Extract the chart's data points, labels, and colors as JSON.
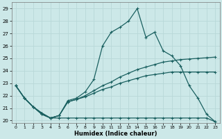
{
  "xlabel": "Humidex (Indice chaleur)",
  "bg_color": "#cce8e8",
  "grid_color": "#b8d8d8",
  "line_color": "#1a6060",
  "xlim": [
    -0.5,
    23.5
  ],
  "ylim": [
    19.8,
    29.5
  ],
  "xticks": [
    0,
    1,
    2,
    3,
    4,
    5,
    6,
    7,
    8,
    9,
    10,
    11,
    12,
    13,
    14,
    15,
    16,
    17,
    18,
    19,
    20,
    21,
    22,
    23
  ],
  "yticks": [
    20,
    21,
    22,
    23,
    24,
    25,
    26,
    27,
    28,
    29
  ],
  "line1_x": [
    0,
    1,
    2,
    3,
    4,
    5,
    6,
    7,
    8,
    9,
    10,
    11,
    12,
    13,
    14,
    15,
    16,
    17,
    18,
    19,
    20,
    21,
    22,
    23
  ],
  "line1_y": [
    22.8,
    21.8,
    21.1,
    20.5,
    20.2,
    20.4,
    21.6,
    21.8,
    22.3,
    23.3,
    26.0,
    27.1,
    27.5,
    28.0,
    29.0,
    26.7,
    27.1,
    25.6,
    25.2,
    24.4,
    22.8,
    21.8,
    20.5,
    19.9
  ],
  "line2_x": [
    0,
    1,
    2,
    3,
    4,
    5,
    6,
    7,
    8,
    9,
    10,
    11,
    12,
    13,
    14,
    15,
    16,
    17,
    18,
    19,
    20,
    21,
    22,
    23
  ],
  "line2_y": [
    22.8,
    21.8,
    21.1,
    20.6,
    20.2,
    20.4,
    21.5,
    21.7,
    22.0,
    22.4,
    22.8,
    23.1,
    23.5,
    23.8,
    24.1,
    24.3,
    24.5,
    24.7,
    24.8,
    24.9,
    24.95,
    25.0,
    25.05,
    25.1
  ],
  "line3_x": [
    0,
    1,
    2,
    3,
    4,
    5,
    6,
    7,
    8,
    9,
    10,
    11,
    12,
    13,
    14,
    15,
    16,
    17,
    18,
    19,
    20,
    21,
    22,
    23
  ],
  "line3_y": [
    22.8,
    21.8,
    21.1,
    20.6,
    20.2,
    20.4,
    21.5,
    21.7,
    21.9,
    22.2,
    22.5,
    22.7,
    23.0,
    23.2,
    23.4,
    23.6,
    23.7,
    23.8,
    23.9,
    23.9,
    23.9,
    23.9,
    23.9,
    23.9
  ],
  "line4_x": [
    0,
    1,
    2,
    3,
    4,
    5,
    6,
    7,
    8,
    9,
    10,
    11,
    12,
    13,
    14,
    15,
    16,
    17,
    18,
    19,
    20,
    21,
    22,
    23
  ],
  "line4_y": [
    22.8,
    21.8,
    21.1,
    20.5,
    20.2,
    20.2,
    20.2,
    20.2,
    20.2,
    20.2,
    20.2,
    20.2,
    20.2,
    20.2,
    20.2,
    20.2,
    20.2,
    20.2,
    20.2,
    20.2,
    20.2,
    20.2,
    20.2,
    19.9
  ]
}
